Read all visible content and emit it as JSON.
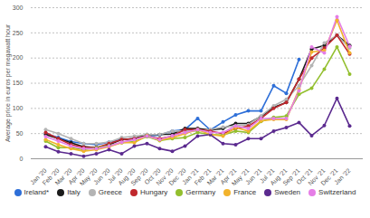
{
  "chart_data": {
    "type": "line",
    "y_label": "Average price in euros per megawatt hour",
    "categories": [
      "Jan '20",
      "Feb '20",
      "Mar '20",
      "Apr '20",
      "May '20",
      "Jun '20",
      "Jul '20",
      "Aug '20",
      "Sep '20",
      "Oct '20",
      "Nov '20",
      "Dec '20",
      "Jan '21",
      "Feb '21",
      "Mar '21",
      "Apr '21",
      "May '21",
      "Jun '21",
      "Jul '21",
      "Aug '21",
      "Sep '21",
      "Oct '21",
      "Nov '21",
      "Dec '21",
      "Jan '22"
    ],
    "series": [
      {
        "name": "Ireland*",
        "color": "#2e6fd8",
        "values": [
          50,
          42,
          34,
          30,
          28,
          33,
          38,
          40,
          45,
          47,
          55,
          58,
          80,
          57,
          73,
          87,
          95,
          95,
          145,
          130,
          197,
          null,
          null,
          null,
          null
        ]
      },
      {
        "name": "Italy",
        "color": "#1b1b1b",
        "values": [
          48,
          40,
          32,
          24,
          22,
          28,
          38,
          40,
          48,
          48,
          49,
          60,
          60,
          57,
          60,
          70,
          70,
          84,
          102,
          112,
          158,
          218,
          225,
          245,
          225
        ]
      },
      {
        "name": "Greece",
        "color": "#b4b4b4",
        "values": [
          58,
          50,
          40,
          30,
          30,
          33,
          42,
          45,
          48,
          48,
          55,
          55,
          55,
          58,
          63,
          65,
          68,
          85,
          105,
          118,
          145,
          185,
          230,
          245,
          220
        ]
      },
      {
        "name": "Hungary",
        "color": "#c0282d",
        "values": [
          52,
          40,
          28,
          23,
          22,
          30,
          38,
          40,
          45,
          40,
          45,
          58,
          58,
          55,
          50,
          60,
          65,
          80,
          100,
          112,
          158,
          200,
          220,
          245,
          208
        ]
      },
      {
        "name": "Germany",
        "color": "#93bf2e",
        "values": [
          35,
          22,
          22,
          18,
          22,
          26,
          32,
          34,
          44,
          36,
          40,
          42,
          52,
          48,
          47,
          55,
          52,
          74,
          82,
          85,
          128,
          140,
          178,
          222,
          168
        ]
      },
      {
        "name": "France",
        "color": "#f2b32c",
        "values": [
          38,
          28,
          20,
          15,
          18,
          24,
          32,
          32,
          46,
          37,
          42,
          50,
          58,
          48,
          45,
          62,
          55,
          75,
          78,
          78,
          138,
          212,
          215,
          275,
          210
        ]
      },
      {
        "name": "Sweden",
        "color": "#5b2a8f",
        "values": [
          24,
          14,
          10,
          5,
          10,
          18,
          10,
          25,
          30,
          20,
          15,
          25,
          45,
          48,
          30,
          28,
          40,
          40,
          55,
          62,
          72,
          46,
          66,
          120,
          65
        ]
      },
      {
        "name": "Switzerland",
        "color": "#e57ee6",
        "values": [
          44,
          35,
          25,
          20,
          20,
          25,
          33,
          38,
          45,
          38,
          46,
          52,
          58,
          52,
          52,
          65,
          60,
          80,
          80,
          80,
          135,
          222,
          210,
          282,
          223
        ]
      }
    ],
    "ylim": [
      0,
      300
    ],
    "yticks": [
      0,
      50,
      100,
      150,
      200,
      250,
      300
    ],
    "grid": true,
    "marker": "circle",
    "legend": "bottom"
  }
}
